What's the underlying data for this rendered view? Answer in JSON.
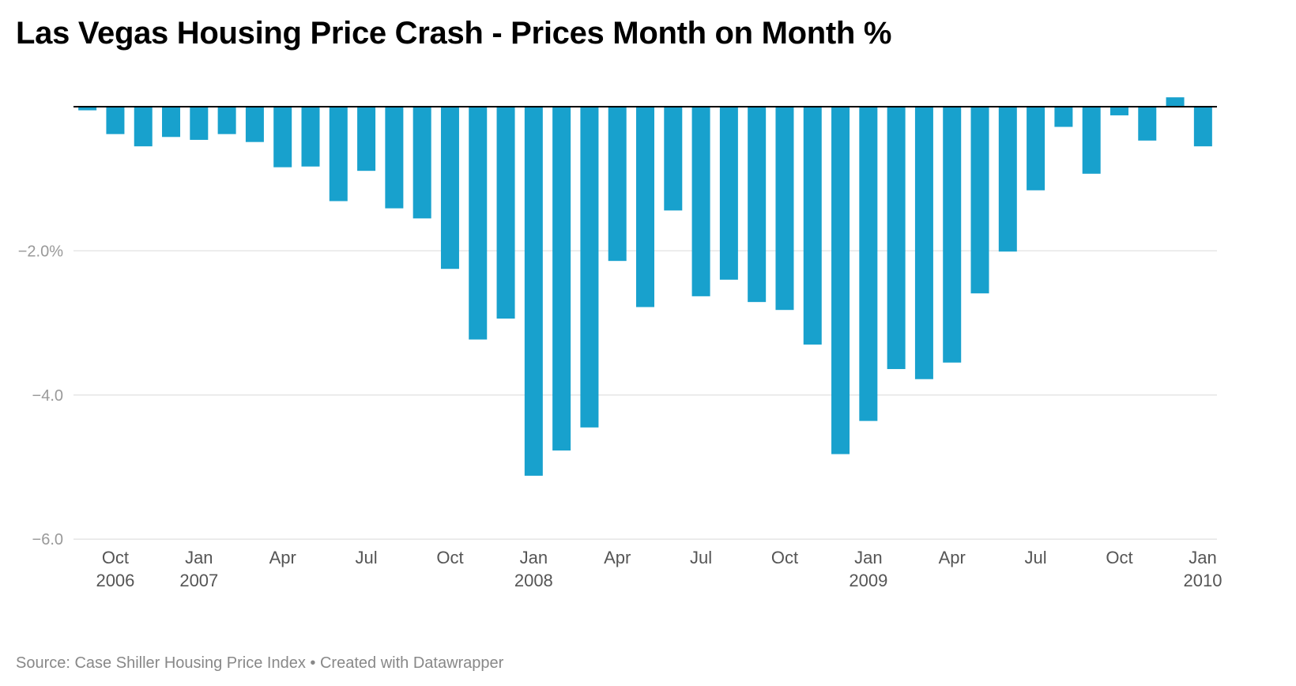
{
  "title": "Las Vegas Housing Price Crash - Prices Month on Month %",
  "source": {
    "text": "Source: Case Shiller Housing Price Index",
    "separator": " • ",
    "credit": "Created with Datawrapper"
  },
  "colors": {
    "bar": "#18a1cd",
    "grid": "#e3e3e3",
    "baseline": "#000000",
    "tick_text": "#999999",
    "label_text": "#555555"
  },
  "chart_data": {
    "type": "bar",
    "title": "Las Vegas Housing Price Crash - Prices Month on Month %",
    "xlabel": "",
    "ylabel": "",
    "ylim": [
      -6.0,
      0.15
    ],
    "yticks": [
      {
        "value": -2.0,
        "label": "−2.0%"
      },
      {
        "value": -4.0,
        "label": "−4.0"
      },
      {
        "value": -6.0,
        "label": "−6.0"
      }
    ],
    "grid": true,
    "legend": "none",
    "categories": [
      "2006-09",
      "2006-10",
      "2006-11",
      "2006-12",
      "2007-01",
      "2007-02",
      "2007-03",
      "2007-04",
      "2007-05",
      "2007-06",
      "2007-07",
      "2007-08",
      "2007-09",
      "2007-10",
      "2007-11",
      "2007-12",
      "2008-01",
      "2008-02",
      "2008-03",
      "2008-04",
      "2008-05",
      "2008-06",
      "2008-07",
      "2008-08",
      "2008-09",
      "2008-10",
      "2008-11",
      "2008-12",
      "2009-01",
      "2009-02",
      "2009-03",
      "2009-04",
      "2009-05",
      "2009-06",
      "2009-07",
      "2009-08",
      "2009-09",
      "2009-10",
      "2009-11",
      "2009-12",
      "2010-01"
    ],
    "values": [
      -0.05,
      -0.38,
      -0.55,
      -0.42,
      -0.46,
      -0.38,
      -0.49,
      -0.84,
      -0.83,
      -1.31,
      -0.89,
      -1.41,
      -1.55,
      -2.25,
      -3.23,
      -2.94,
      -5.12,
      -4.77,
      -4.45,
      -2.14,
      -2.78,
      -1.44,
      -2.63,
      -2.4,
      -2.71,
      -2.82,
      -3.3,
      -4.82,
      -4.36,
      -3.64,
      -3.78,
      -3.55,
      -2.59,
      -2.01,
      -1.16,
      -0.28,
      -0.93,
      -0.12,
      -0.47,
      0.13,
      -0.55
    ],
    "xticks": [
      {
        "index": 1,
        "month": "Oct",
        "year": "2006"
      },
      {
        "index": 4,
        "month": "Jan",
        "year": "2007"
      },
      {
        "index": 7,
        "month": "Apr",
        "year": ""
      },
      {
        "index": 10,
        "month": "Jul",
        "year": ""
      },
      {
        "index": 13,
        "month": "Oct",
        "year": ""
      },
      {
        "index": 16,
        "month": "Jan",
        "year": "2008"
      },
      {
        "index": 19,
        "month": "Apr",
        "year": ""
      },
      {
        "index": 22,
        "month": "Jul",
        "year": ""
      },
      {
        "index": 25,
        "month": "Oct",
        "year": ""
      },
      {
        "index": 28,
        "month": "Jan",
        "year": "2009"
      },
      {
        "index": 31,
        "month": "Apr",
        "year": ""
      },
      {
        "index": 34,
        "month": "Jul",
        "year": ""
      },
      {
        "index": 37,
        "month": "Oct",
        "year": ""
      },
      {
        "index": 40,
        "month": "Jan",
        "year": "2010"
      }
    ]
  }
}
